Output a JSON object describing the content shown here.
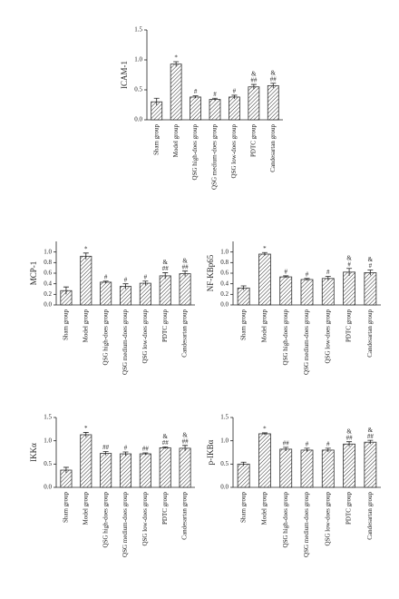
{
  "chart_data": [
    {
      "type": "bar",
      "ylabel": "ICAM-1",
      "categories": [
        "Sham group",
        "Model group",
        "QSG high-does group",
        "QSG medium-does group",
        "QSG low-does group",
        "PDTC group",
        "Candesartan group"
      ],
      "values": [
        0.3,
        0.93,
        0.38,
        0.34,
        0.38,
        0.55,
        0.57
      ],
      "errors": [
        0.06,
        0.04,
        0.02,
        0.02,
        0.03,
        0.04,
        0.04
      ],
      "annotations": [
        [],
        [
          "*"
        ],
        [
          "#"
        ],
        [
          "#"
        ],
        [
          "#"
        ],
        [
          "&",
          "##"
        ],
        [
          "&",
          "##"
        ]
      ],
      "ylim": [
        0,
        1.5
      ],
      "yticks": [
        {
          "value": 0,
          "label": "0.0"
        },
        0.5,
        {
          "value": 1,
          "label": "1.0"
        },
        1.5
      ],
      "color": "#333333"
    },
    {
      "type": "bar",
      "ylabel": "MCP-1",
      "categories": [
        "Sham group",
        "Model group",
        "QSG high-does group",
        "QSG medium-does group",
        "QSG low-does group",
        "PDTC group",
        "Candesartan group"
      ],
      "values": [
        0.27,
        0.92,
        0.43,
        0.35,
        0.41,
        0.55,
        0.59
      ],
      "errors": [
        0.07,
        0.06,
        0.02,
        0.05,
        0.04,
        0.06,
        0.05
      ],
      "annotations": [
        [],
        [
          "*"
        ],
        [
          "#"
        ],
        [
          "#"
        ],
        [
          "#"
        ],
        [
          "&",
          "##"
        ],
        [
          "&",
          "##"
        ]
      ],
      "ylim": [
        0,
        1.2
      ],
      "yticks": [
        {
          "value": 0,
          "label": "0.0"
        },
        0.2,
        0.4,
        0.6,
        0.8,
        {
          "value": 1,
          "label": "1.0"
        }
      ],
      "color": "#333333"
    },
    {
      "type": "bar",
      "ylabel": "NF-KBp65",
      "categories": [
        "Sham group",
        "Model group",
        "QSG high-does group",
        "QSG medium-does group",
        "QSG low-does group",
        "PDTC group",
        "Candesartan group"
      ],
      "values": [
        0.32,
        0.96,
        0.53,
        0.48,
        0.5,
        0.62,
        0.61
      ],
      "errors": [
        0.04,
        0.03,
        0.02,
        0.02,
        0.04,
        0.07,
        0.05
      ],
      "annotations": [
        [],
        [
          "*"
        ],
        [
          "#"
        ],
        [
          "#"
        ],
        [
          "#"
        ],
        [
          "&",
          "#"
        ],
        [
          "&",
          "#"
        ]
      ],
      "ylim": [
        0,
        1.2
      ],
      "yticks": [
        {
          "value": 0,
          "label": "0.0"
        },
        0.2,
        0.4,
        0.6,
        0.8,
        {
          "value": 1,
          "label": "1.0"
        }
      ],
      "color": "#333333"
    },
    {
      "type": "bar",
      "ylabel": "IKKα",
      "categories": [
        "Sham group",
        "Model group",
        "QSG high-does group",
        "QSG medium-does group",
        "QSG low-does group",
        "PDTC group",
        "Candesartan group"
      ],
      "values": [
        0.37,
        1.13,
        0.73,
        0.72,
        0.72,
        0.85,
        0.84
      ],
      "errors": [
        0.06,
        0.05,
        0.04,
        0.04,
        0.02,
        0.02,
        0.06
      ],
      "annotations": [
        [],
        [
          "*"
        ],
        [
          "##"
        ],
        [
          "#"
        ],
        [
          "##"
        ],
        [
          "&",
          "##"
        ],
        [
          "&",
          "##"
        ]
      ],
      "ylim": [
        0,
        1.5
      ],
      "yticks": [
        {
          "value": 0,
          "label": "0.0"
        },
        0.5,
        {
          "value": 1,
          "label": "1.0"
        },
        1.5
      ],
      "color": "#333333"
    },
    {
      "type": "bar",
      "ylabel": "p-IKBα",
      "categories": [
        "Sham group",
        "Model group",
        "QSG high-does group",
        "QSG medium-does group",
        "QSG low-does group",
        "PDTC group",
        "Candesartan group"
      ],
      "values": [
        0.5,
        1.15,
        0.82,
        0.8,
        0.8,
        0.93,
        0.97
      ],
      "errors": [
        0.04,
        0.02,
        0.04,
        0.04,
        0.04,
        0.05,
        0.04
      ],
      "annotations": [
        [],
        [
          "*"
        ],
        [
          "##"
        ],
        [
          "#"
        ],
        [
          "#"
        ],
        [
          "&",
          "##"
        ],
        [
          "&",
          "##"
        ]
      ],
      "ylim": [
        0,
        1.5
      ],
      "yticks": [
        {
          "value": 0,
          "label": "0.0"
        },
        0.5,
        {
          "value": 1,
          "label": "1.0"
        },
        1.5
      ],
      "color": "#333333"
    }
  ]
}
